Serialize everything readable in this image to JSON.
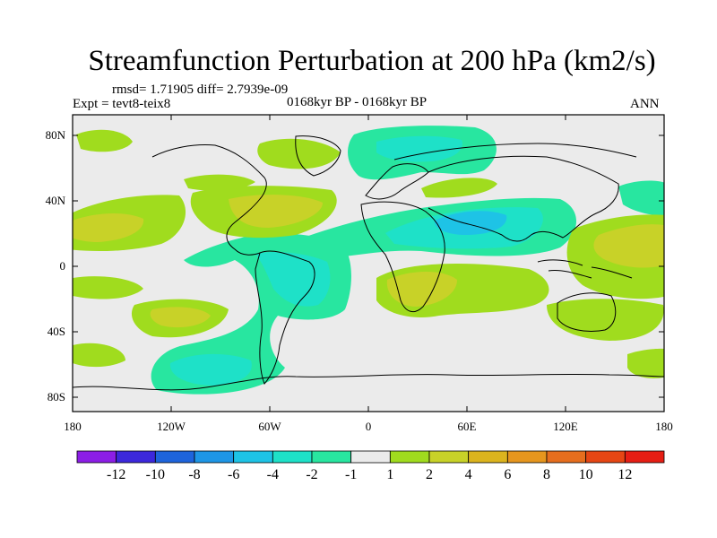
{
  "title": "Streamfunction Perturbation at 200 hPa (km2/s)",
  "stats": "rmsd= 1.71905 diff= 2.7939e-09",
  "experiment": "Expt = tevt8-teix8",
  "period": "0168kyr BP - 0168kyr BP",
  "season": "ANN",
  "map": {
    "projection": "cylindrical-equidistant",
    "lon_ticks": [
      "180",
      "120W",
      "60W",
      "0",
      "60E",
      "120E",
      "180"
    ],
    "lat_ticks": [
      "80N",
      "40N",
      "0",
      "40S",
      "80S"
    ]
  },
  "colorbar": {
    "labels": [
      "-12",
      "-10",
      "-8",
      "-6",
      "-4",
      "-2",
      "-1",
      "1",
      "2",
      "4",
      "6",
      "8",
      "10",
      "12"
    ],
    "colors": [
      "#8c1ee6",
      "#3c28dc",
      "#1e64dc",
      "#1e96e6",
      "#1ec3e6",
      "#1ee1c8",
      "#28e6a0",
      "#ebebeb",
      "#a0dc1e",
      "#c8d228",
      "#dcb41e",
      "#e6961e",
      "#e66e1e",
      "#e64614",
      "#e61e14"
    ]
  },
  "colors": {
    "neutral": "#ebebeb",
    "pos1": "#a0dc1e",
    "pos2": "#c8d228",
    "pos3": "#dcb41e",
    "neg1": "#28e6a0",
    "neg2": "#1ee1c8",
    "neg3": "#1ec3e6"
  }
}
